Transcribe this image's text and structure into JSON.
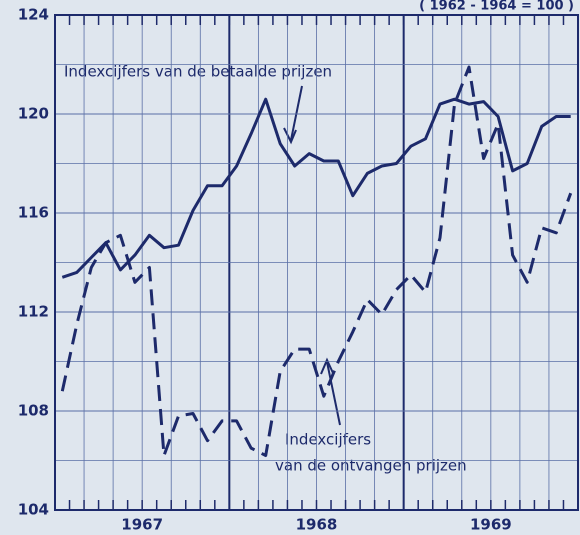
{
  "chart_data": {
    "type": "line",
    "subtitle": "( 1962 - 1964 = 100 )",
    "annotations": [
      "Indexcijfers van de betaalde prijzen",
      "Indexcijfers",
      "van de ontvangen prijzen"
    ],
    "categories": [
      null,
      null,
      null,
      null,
      null,
      null,
      "1967",
      null,
      null,
      null,
      null,
      null,
      null,
      null,
      null,
      null,
      null,
      null,
      "1968",
      null,
      null,
      null,
      null,
      null,
      null,
      null,
      null,
      null,
      null,
      null,
      "1969",
      null,
      null,
      null,
      null,
      null
    ],
    "series": [
      {
        "name": "Indexcijfers van de betaalde prijzen",
        "color": "#1d2a6b",
        "dash": false,
        "values": [
          113.4,
          113.6,
          114.2,
          114.8,
          113.7,
          114.3,
          115.1,
          114.6,
          114.7,
          116.1,
          117.1,
          117.1,
          117.9,
          119.2,
          120.6,
          118.8,
          117.9,
          118.4,
          118.1,
          118.1,
          116.7,
          117.6,
          117.9,
          118.0,
          118.7,
          119.0,
          120.4,
          120.6,
          120.4,
          120.5,
          119.9,
          117.7,
          118.0,
          119.5,
          119.9,
          119.9
        ]
      },
      {
        "name": "Indexcijfers van de ontvangen prijzen",
        "color": "#1d2a6b",
        "dash": true,
        "values": [
          108.8,
          111.5,
          113.8,
          114.8,
          115.1,
          113.2,
          113.8,
          106.2,
          107.8,
          107.9,
          106.8,
          107.6,
          107.6,
          106.5,
          106.2,
          109.6,
          110.5,
          110.5,
          108.6,
          110.0,
          111.2,
          112.5,
          111.9,
          112.9,
          113.5,
          112.8,
          115.0,
          120.4,
          121.9,
          118.2,
          119.6,
          114.3,
          113.2,
          115.4,
          115.2,
          116.8
        ]
      }
    ],
    "ylim": [
      104,
      124
    ],
    "yticks": [
      104,
      108,
      112,
      116,
      120,
      124
    ],
    "minor_yticks": [
      106,
      110,
      114,
      118,
      122
    ],
    "grid": true
  }
}
